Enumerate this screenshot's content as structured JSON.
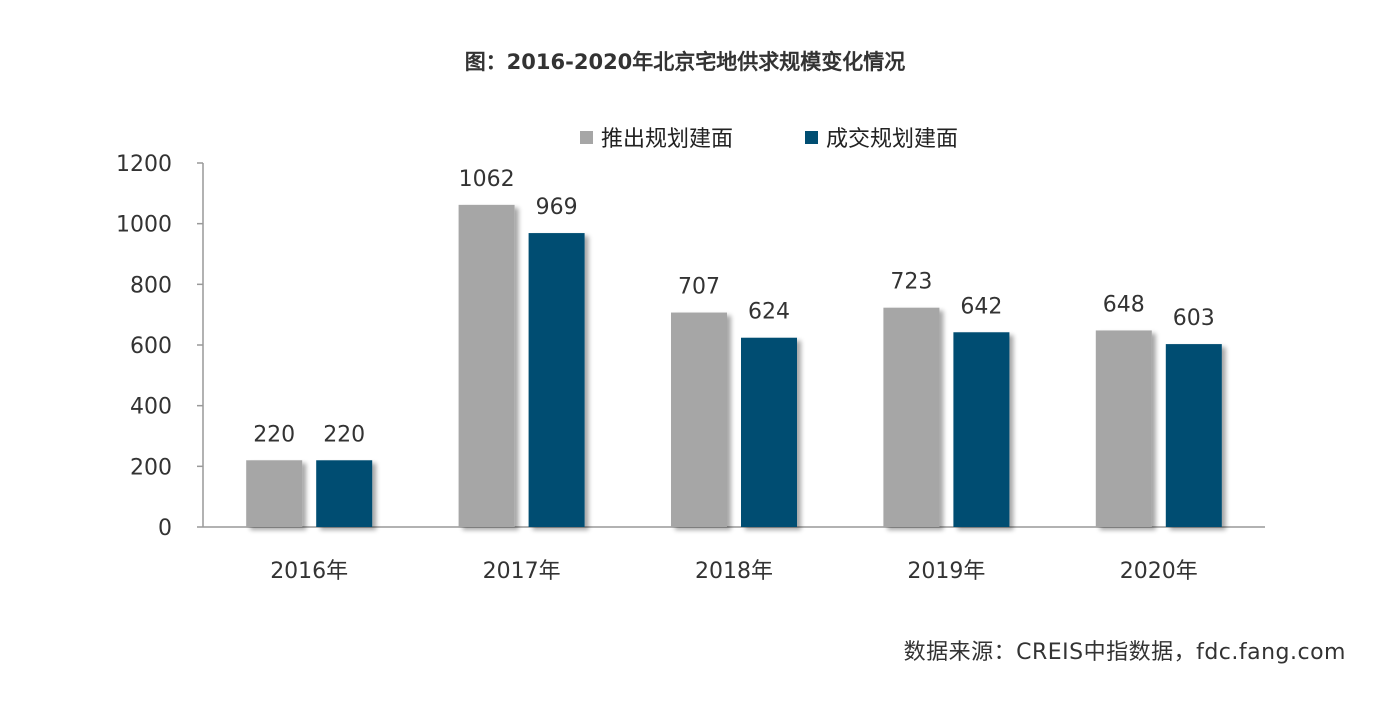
{
  "title": "图：2016-2020年北京宅地供求规模变化情况",
  "source": "数据来源：CREIS中指数据，fdc.fang.com",
  "chart_data": {
    "type": "bar",
    "categories": [
      "2016年",
      "2017年",
      "2018年",
      "2019年",
      "2020年"
    ],
    "series": [
      {
        "name": "推出规划建面",
        "color": "#a6a6a6",
        "values": [
          220,
          1062,
          707,
          723,
          648
        ]
      },
      {
        "name": "成交规划建面",
        "color": "#004e72",
        "values": [
          220,
          969,
          624,
          642,
          603
        ]
      }
    ],
    "ylim": [
      0,
      1200
    ],
    "yticks": [
      0,
      200,
      400,
      600,
      800,
      1000,
      1200
    ],
    "legend_position": "top",
    "grid": false
  }
}
